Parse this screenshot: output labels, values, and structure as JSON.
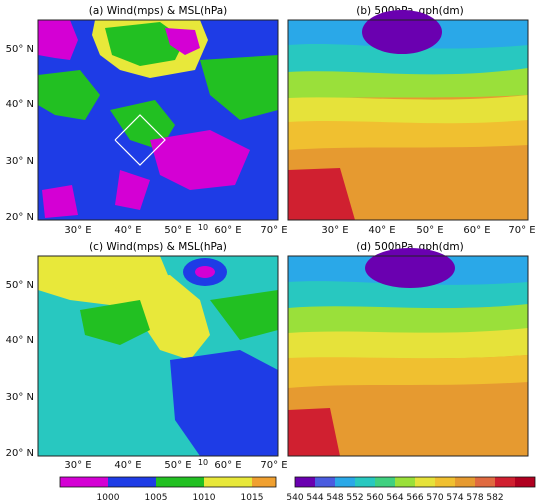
{
  "panels": [
    {
      "id": "a",
      "title": "(a) Wind(mps) & MSL(hPa)",
      "xticks": [
        "30° E",
        "40° E",
        "50° E",
        "60° E",
        "70° E"
      ],
      "yticks": [
        "50° N",
        "40° N",
        "30° N",
        "20° N"
      ],
      "vector_ref": "10"
    },
    {
      "id": "b",
      "title": "(b) 500hPa_gph(dm)",
      "xticks": [
        "30° E",
        "40° E",
        "50° E",
        "60° E",
        "70° E"
      ],
      "yticks": [
        "50° N",
        "40° N",
        "30° N",
        "20° N"
      ]
    },
    {
      "id": "c",
      "title": "(c) Wind(mps) & MSL(hPa)",
      "xticks": [
        "30° E",
        "40° E",
        "50° E",
        "60° E",
        "70° E"
      ],
      "yticks": [
        "50° N",
        "40° N",
        "30° N",
        "20° N"
      ],
      "vector_ref": "10"
    },
    {
      "id": "d",
      "title": "(d) 500hPa_gph(dm)",
      "xticks": [
        "30° E",
        "40° E",
        "50° E",
        "60° E",
        "70° E"
      ],
      "yticks": [
        "50° N",
        "40° N",
        "30° N",
        "20° N"
      ]
    }
  ],
  "colorbar_msl": {
    "labels": [
      "1000",
      "1005",
      "1010",
      "1015"
    ],
    "colors": [
      "#d400d4",
      "#1e3ce6",
      "#22c022",
      "#e8e83a",
      "#f0a030"
    ]
  },
  "colorbar_gph": {
    "labels": [
      "540",
      "544",
      "548",
      "552",
      "560",
      "564",
      "566",
      "570",
      "574",
      "578",
      "582"
    ],
    "colors": [
      "#6a00b0",
      "#4a5ce0",
      "#2aa8e8",
      "#28c8c0",
      "#40d080",
      "#9ae03a",
      "#e6e23a",
      "#f0c030",
      "#e69a30",
      "#e06a40",
      "#d02030",
      "#b00020"
    ]
  }
}
